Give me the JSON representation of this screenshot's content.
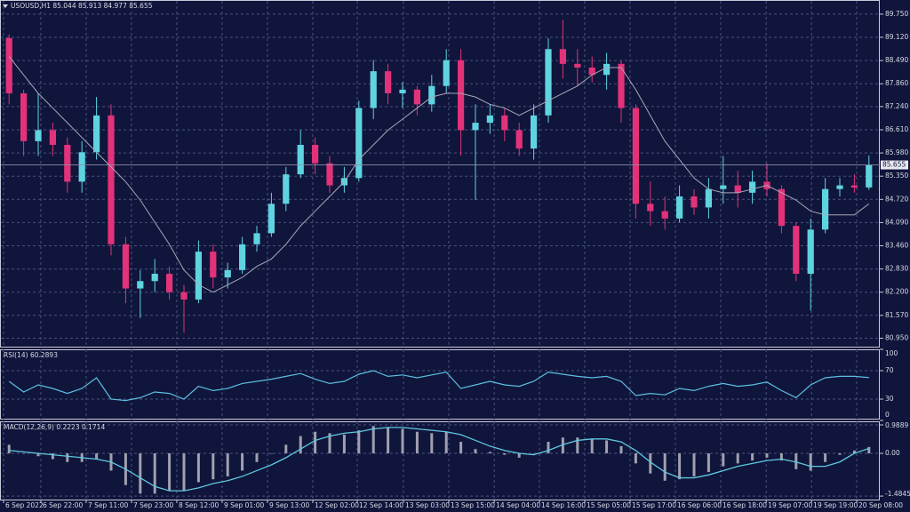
{
  "chart_data": [
    {
      "type": "candlestick",
      "title": "USOUSD,H1  85.044 85.913 84.977 85.655",
      "up_color": "#5fd3e0",
      "down_color": "#e2327a",
      "grid": true,
      "xlim": [
        -0.5,
        59.5
      ],
      "xticks": [
        {
          "value": -0.38,
          "label": "6 Sep 2022"
        },
        {
          "value": 2.18,
          "label": "6 Sep 22:00"
        },
        {
          "value": 5.29,
          "label": "7 Sep 11:00"
        },
        {
          "value": 8.4,
          "label": "7 Sep 23:00"
        },
        {
          "value": 11.51,
          "label": "8 Sep 12:00"
        },
        {
          "value": 14.62,
          "label": "9 Sep 01:00"
        },
        {
          "value": 17.73,
          "label": "9 Sep 13:00"
        },
        {
          "value": 20.84,
          "label": "12 Sep 02:00"
        },
        {
          "value": 23.89,
          "label": "12 Sep 14:00"
        },
        {
          "value": 27.06,
          "label": "13 Sep 03:00"
        },
        {
          "value": 30.17,
          "label": "13 Sep 15:00"
        },
        {
          "value": 33.29,
          "label": "14 Sep 04:00"
        },
        {
          "value": 36.39,
          "label": "14 Sep 16:00"
        },
        {
          "value": 39.5,
          "label": "15 Sep 05:00"
        },
        {
          "value": 42.61,
          "label": "15 Sep 17:00"
        },
        {
          "value": 45.72,
          "label": "16 Sep 06:00"
        },
        {
          "value": 48.83,
          "label": "16 Sep 18:00"
        },
        {
          "value": 51.95,
          "label": "19 Sep 07:00"
        },
        {
          "value": 55.06,
          "label": "19 Sep 19:00"
        },
        {
          "value": 58.16,
          "label": "20 Sep 08:00"
        }
      ],
      "ylim": [
        80.72,
        90.11
      ],
      "yticks": [
        {
          "value": 89.75,
          "label": "89.750"
        },
        {
          "value": 89.12,
          "label": "89.120"
        },
        {
          "value": 88.49,
          "label": "88.490"
        },
        {
          "value": 87.86,
          "label": "87.860"
        },
        {
          "value": 87.24,
          "label": "87.240"
        },
        {
          "value": 86.61,
          "label": "86.610"
        },
        {
          "value": 85.98,
          "label": "85.980"
        },
        {
          "value": 85.35,
          "label": "85.350"
        },
        {
          "value": 84.72,
          "label": "84.720"
        },
        {
          "value": 84.09,
          "label": "84.090"
        },
        {
          "value": 83.46,
          "label": "83.460"
        },
        {
          "value": 82.83,
          "label": "82.830"
        },
        {
          "value": 82.2,
          "label": "82.200"
        },
        {
          "value": 81.57,
          "label": "81.570"
        },
        {
          "value": 80.95,
          "label": "80.950"
        }
      ],
      "last_price": 85.655,
      "ohlc": [
        [
          89.1,
          89.2,
          87.3,
          87.6
        ],
        [
          87.6,
          87.7,
          85.9,
          86.3
        ],
        [
          86.3,
          87.6,
          85.9,
          86.6
        ],
        [
          86.6,
          86.8,
          85.9,
          86.2
        ],
        [
          86.2,
          86.4,
          84.9,
          85.2
        ],
        [
          85.2,
          86.3,
          84.9,
          86.0
        ],
        [
          86.0,
          87.5,
          85.8,
          87.0
        ],
        [
          87.0,
          87.3,
          83.2,
          83.5
        ],
        [
          83.5,
          83.7,
          81.9,
          82.3
        ],
        [
          82.3,
          82.8,
          81.5,
          82.5
        ],
        [
          82.5,
          83.1,
          82.2,
          82.7
        ],
        [
          82.7,
          82.9,
          82.0,
          82.2
        ],
        [
          82.2,
          82.4,
          81.1,
          82.0
        ],
        [
          82.0,
          83.6,
          81.9,
          83.3
        ],
        [
          83.3,
          83.5,
          82.3,
          82.6
        ],
        [
          82.6,
          83.0,
          82.3,
          82.8
        ],
        [
          82.8,
          83.7,
          82.7,
          83.5
        ],
        [
          83.5,
          84.0,
          83.3,
          83.8
        ],
        [
          83.8,
          84.9,
          83.7,
          84.6
        ],
        [
          84.6,
          85.6,
          84.4,
          85.4
        ],
        [
          85.4,
          86.6,
          85.3,
          86.2
        ],
        [
          86.2,
          86.4,
          85.4,
          85.7
        ],
        [
          85.7,
          85.9,
          84.9,
          85.1
        ],
        [
          85.1,
          85.6,
          84.9,
          85.3
        ],
        [
          85.3,
          87.4,
          85.2,
          87.2
        ],
        [
          87.2,
          88.5,
          86.9,
          88.2
        ],
        [
          88.2,
          88.4,
          87.3,
          87.6
        ],
        [
          87.6,
          87.9,
          87.2,
          87.7
        ],
        [
          87.7,
          87.8,
          87.0,
          87.3
        ],
        [
          87.3,
          88.1,
          87.1,
          87.8
        ],
        [
          87.8,
          88.8,
          87.6,
          88.5
        ],
        [
          88.5,
          88.8,
          85.9,
          86.6
        ],
        [
          86.6,
          87.3,
          84.7,
          86.8
        ],
        [
          86.8,
          87.3,
          86.5,
          87.0
        ],
        [
          87.0,
          87.2,
          86.3,
          86.6
        ],
        [
          86.6,
          86.8,
          85.9,
          86.1
        ],
        [
          86.1,
          87.3,
          85.8,
          87.0
        ],
        [
          87.0,
          89.1,
          86.8,
          88.8
        ],
        [
          88.8,
          89.6,
          88.0,
          88.4
        ],
        [
          88.4,
          88.8,
          87.8,
          88.3
        ],
        [
          88.3,
          88.6,
          87.9,
          88.1
        ],
        [
          88.1,
          88.7,
          87.7,
          88.4
        ],
        [
          88.4,
          88.5,
          86.8,
          87.2
        ],
        [
          87.2,
          87.3,
          84.2,
          84.6
        ],
        [
          84.6,
          85.2,
          84.0,
          84.4
        ],
        [
          84.4,
          84.8,
          83.9,
          84.2
        ],
        [
          84.2,
          85.1,
          84.1,
          84.8
        ],
        [
          84.8,
          85.0,
          84.3,
          84.5
        ],
        [
          84.5,
          85.3,
          84.2,
          85.0
        ],
        [
          85.0,
          85.9,
          84.6,
          85.1
        ],
        [
          85.1,
          85.5,
          84.5,
          84.9
        ],
        [
          84.9,
          85.5,
          84.6,
          85.2
        ],
        [
          85.2,
          85.7,
          84.8,
          85.0
        ],
        [
          85.0,
          85.1,
          83.8,
          84.0
        ],
        [
          84.0,
          84.1,
          82.5,
          82.7
        ],
        [
          82.7,
          84.2,
          81.7,
          83.9
        ],
        [
          83.9,
          85.3,
          83.8,
          85.0
        ],
        [
          85.0,
          85.3,
          84.8,
          85.1
        ],
        [
          85.1,
          85.4,
          84.9,
          85.04
        ],
        [
          85.044,
          85.913,
          84.977,
          85.655
        ]
      ],
      "ma": {
        "color": "#a8a8b8",
        "values": [
          88.6,
          88.1,
          87.6,
          87.2,
          86.8,
          86.4,
          86.0,
          85.6,
          85.2,
          84.7,
          84.1,
          83.5,
          82.8,
          82.4,
          82.2,
          82.4,
          82.6,
          82.9,
          83.1,
          83.5,
          84.0,
          84.4,
          84.8,
          85.2,
          85.8,
          86.2,
          86.6,
          86.9,
          87.2,
          87.5,
          87.6,
          87.6,
          87.5,
          87.3,
          87.2,
          87.0,
          87.2,
          87.4,
          87.6,
          87.8,
          88.1,
          88.3,
          88.3,
          87.7,
          87.0,
          86.3,
          85.8,
          85.3,
          85.0,
          84.9,
          84.9,
          85.0,
          85.1,
          84.9,
          84.7,
          84.4,
          84.3,
          84.3,
          84.3,
          84.6
        ]
      }
    },
    {
      "type": "line",
      "title": "RSI(14) 60.2893",
      "color": "#5bbfe0",
      "grid": true,
      "ylim": [
        0,
        100
      ],
      "yticks": [
        100,
        70,
        30,
        0
      ],
      "values": [
        55,
        40,
        50,
        45,
        38,
        45,
        60,
        30,
        28,
        32,
        40,
        38,
        30,
        48,
        42,
        45,
        52,
        55,
        58,
        62,
        66,
        58,
        52,
        55,
        65,
        70,
        62,
        64,
        60,
        64,
        68,
        45,
        50,
        55,
        50,
        48,
        55,
        68,
        65,
        62,
        60,
        62,
        55,
        35,
        38,
        36,
        45,
        42,
        48,
        52,
        48,
        50,
        54,
        42,
        32,
        50,
        60,
        62,
        62,
        60.2893
      ]
    },
    {
      "type": "macd",
      "title": "MACD(12,26,9) 0.2223 0.1714",
      "hist_color": "#a0a0b0",
      "signal_color": "#5fc8e0",
      "grid": true,
      "ylim": [
        -1.605,
        1.112
      ],
      "yticks": [
        0.9889,
        {
          "value": 0,
          "label": "0.00"
        },
        -1.4845
      ],
      "histogram": [
        0.3,
        0.0,
        -0.1,
        -0.2,
        -0.3,
        -0.3,
        -0.2,
        -0.6,
        -1.1,
        -1.4,
        -1.4,
        -1.3,
        -1.3,
        -1.0,
        -0.9,
        -0.8,
        -0.6,
        -0.3,
        0.0,
        0.3,
        0.6,
        0.75,
        0.7,
        0.65,
        0.8,
        0.95,
        0.9,
        0.85,
        0.75,
        0.7,
        0.75,
        0.4,
        0.15,
        0.05,
        -0.05,
        -0.15,
        0.0,
        0.4,
        0.55,
        0.55,
        0.5,
        0.45,
        0.25,
        -0.35,
        -0.7,
        -0.95,
        -0.9,
        -0.8,
        -0.65,
        -0.45,
        -0.35,
        -0.25,
        -0.15,
        -0.25,
        -0.55,
        -0.6,
        -0.3,
        -0.05,
        0.1,
        0.2223
      ],
      "signal": [
        0.1,
        0.05,
        0.0,
        -0.05,
        -0.1,
        -0.15,
        -0.2,
        -0.3,
        -0.55,
        -0.85,
        -1.15,
        -1.3,
        -1.3,
        -1.2,
        -1.05,
        -0.95,
        -0.8,
        -0.6,
        -0.4,
        -0.15,
        0.15,
        0.45,
        0.6,
        0.7,
        0.75,
        0.85,
        0.9,
        0.9,
        0.85,
        0.8,
        0.75,
        0.65,
        0.45,
        0.25,
        0.1,
        0.0,
        -0.05,
        0.1,
        0.3,
        0.45,
        0.5,
        0.5,
        0.4,
        0.1,
        -0.3,
        -0.65,
        -0.85,
        -0.85,
        -0.75,
        -0.6,
        -0.45,
        -0.35,
        -0.25,
        -0.2,
        -0.3,
        -0.45,
        -0.45,
        -0.3,
        0.0,
        0.1714
      ]
    }
  ]
}
